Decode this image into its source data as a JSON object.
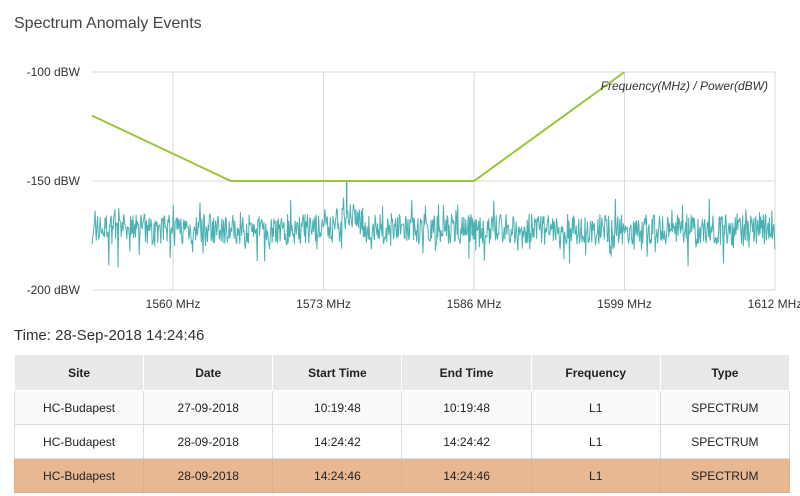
{
  "page": {
    "title": "Spectrum Anomaly Events",
    "time_label": "Time: 28-Sep-2018 14:24:46"
  },
  "colors": {
    "mask": "#9ac43a",
    "spectrum": "#4ab1b3",
    "grid": "#d9d9d9",
    "selected_row": "#e8b892"
  },
  "chart_data": {
    "type": "line",
    "annotation": "Frequency(MHz) / Power(dBW)",
    "x_ticks": [
      "1560 MHz",
      "1573 MHz",
      "1586 MHz",
      "1599 MHz",
      "1612 MHz"
    ],
    "y_ticks": [
      "-100 dBW",
      "-150 dBW",
      "-200 dBW"
    ],
    "xlim": [
      1553,
      1612
    ],
    "ylim": [
      -200,
      -100
    ],
    "grid": true,
    "series": [
      {
        "role": "mask",
        "x": [
          1553,
          1565,
          1570,
          1577,
          1586,
          1599
        ],
        "y": [
          -120,
          -150,
          -150,
          -150,
          -150,
          -100
        ]
      },
      {
        "role": "spectrum",
        "noise_floor": -172,
        "noise_range": [
          -196,
          -155
        ],
        "peak": {
          "x": 1575,
          "y": -150
        }
      }
    ]
  },
  "table": {
    "columns": [
      "Site",
      "Date",
      "Start Time",
      "End Time",
      "Frequency",
      "Type"
    ],
    "rows": [
      {
        "selected": false,
        "cells": [
          "HC-Budapest",
          "27-09-2018",
          "10:19:48",
          "10:19:48",
          "L1",
          "SPECTRUM"
        ]
      },
      {
        "selected": false,
        "cells": [
          "HC-Budapest",
          "28-09-2018",
          "14:24:42",
          "14:24:42",
          "L1",
          "SPECTRUM"
        ]
      },
      {
        "selected": true,
        "cells": [
          "HC-Budapest",
          "28-09-2018",
          "14:24:46",
          "14:24:46",
          "L1",
          "SPECTRUM"
        ]
      }
    ]
  }
}
